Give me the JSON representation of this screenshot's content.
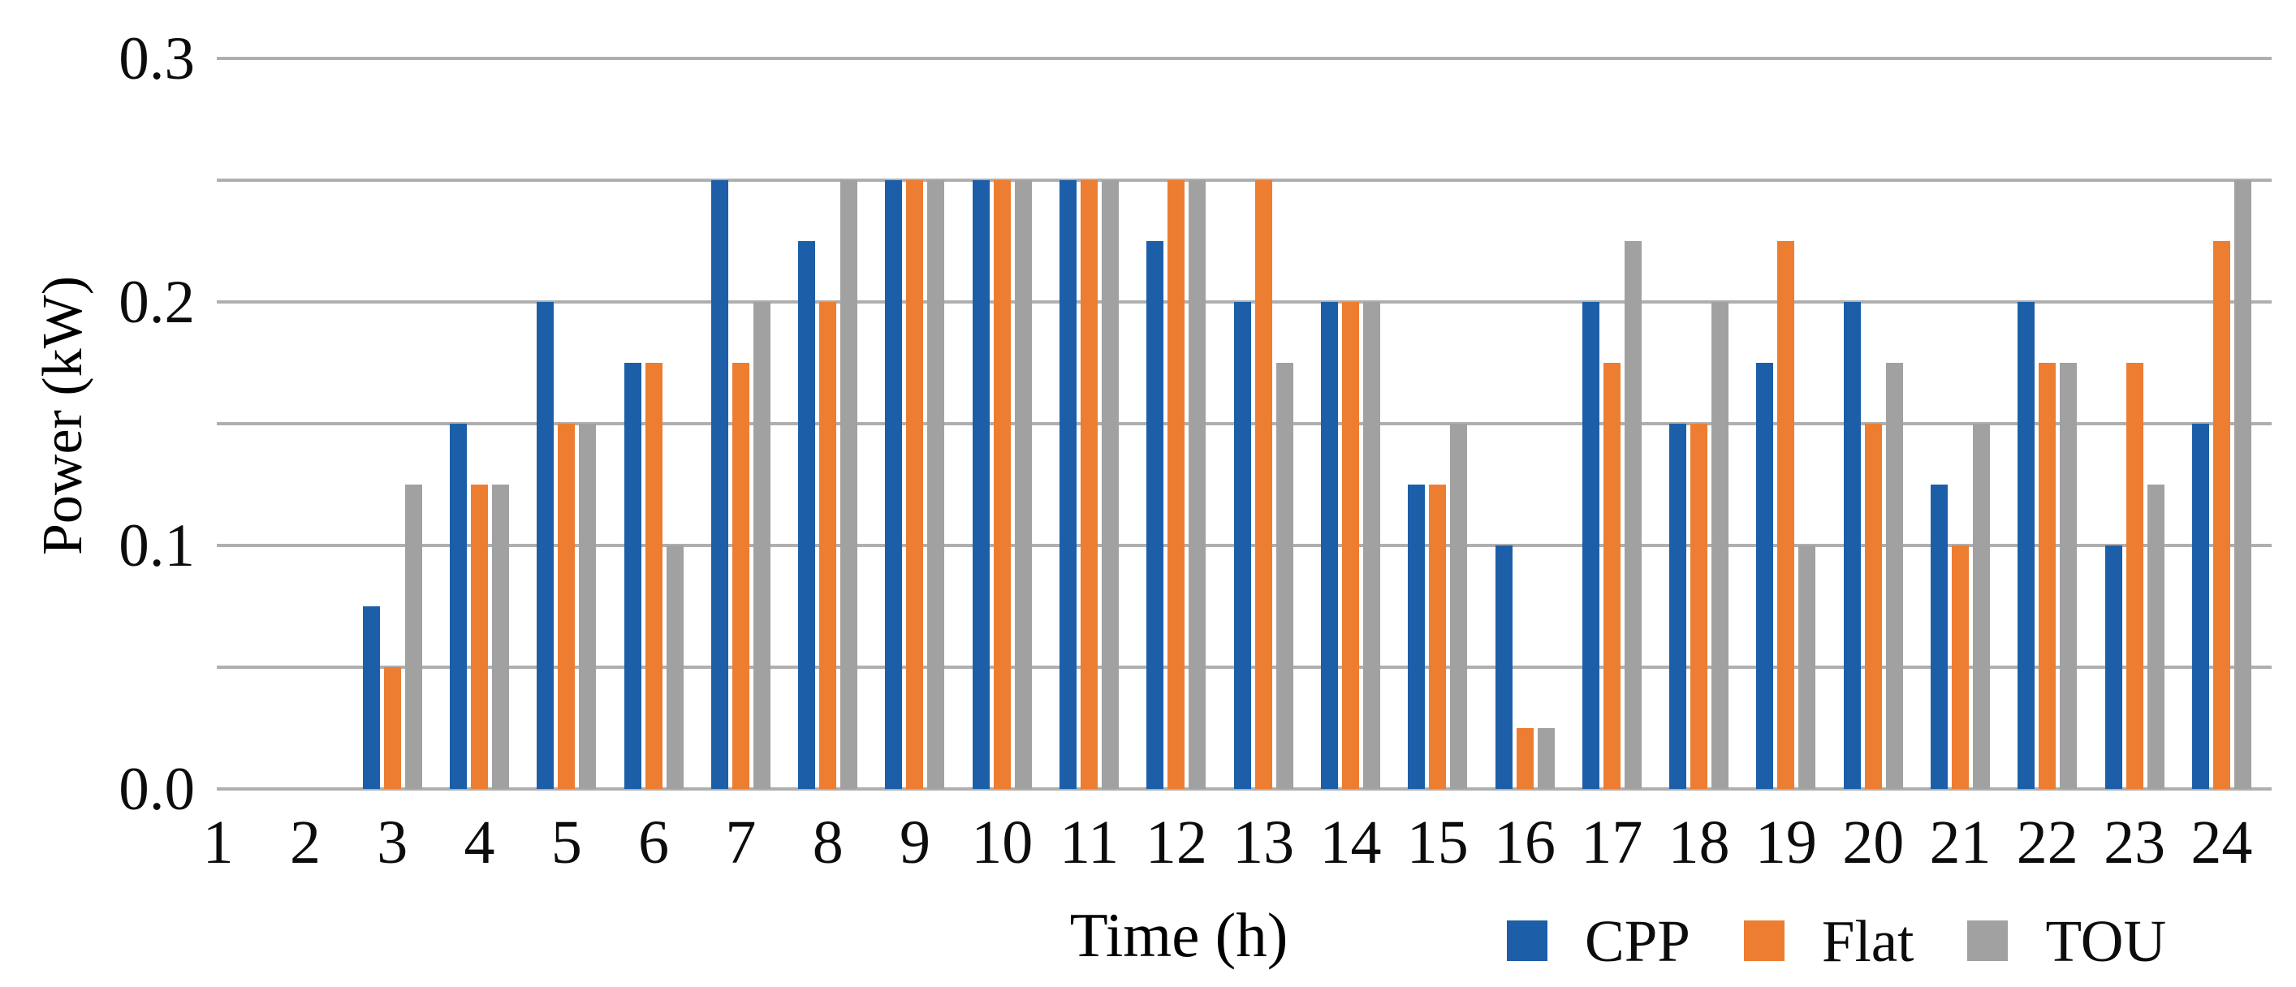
{
  "figure": {
    "background": "#ffffff"
  },
  "chart_data": {
    "type": "bar",
    "title": "",
    "xlabel": "Time (h)",
    "ylabel": "Power (kW)",
    "categories": [
      "1",
      "2",
      "3",
      "4",
      "5",
      "6",
      "7",
      "8",
      "9",
      "10",
      "11",
      "12",
      "13",
      "14",
      "15",
      "16",
      "17",
      "18",
      "19",
      "20",
      "21",
      "22",
      "23",
      "24"
    ],
    "series": [
      {
        "name": "CPP",
        "color": "#1C5FA8",
        "values": [
          0,
          0,
          0.075,
          0.15,
          0.2,
          0.175,
          0.25,
          0.225,
          0.25,
          0.25,
          0.25,
          0.225,
          0.2,
          0.2,
          0.125,
          0.1,
          0.2,
          0.15,
          0.175,
          0.2,
          0.125,
          0.2,
          0.1,
          0.15
        ]
      },
      {
        "name": "Flat",
        "color": "#ED7D31",
        "values": [
          0,
          0,
          0.05,
          0.125,
          0.15,
          0.175,
          0.175,
          0.2,
          0.25,
          0.25,
          0.25,
          0.25,
          0.25,
          0.2,
          0.125,
          0.025,
          0.175,
          0.15,
          0.225,
          0.15,
          0.1,
          0.175,
          0.175,
          0.225
        ]
      },
      {
        "name": "TOU",
        "color": "#A1A1A1",
        "values": [
          0,
          0,
          0.125,
          0.125,
          0.15,
          0.1,
          0.2,
          0.25,
          0.25,
          0.25,
          0.25,
          0.25,
          0.175,
          0.2,
          0.15,
          0.025,
          0.225,
          0.2,
          0.1,
          0.175,
          0.15,
          0.175,
          0.125,
          0.25
        ]
      }
    ],
    "ylim": [
      0,
      0.3
    ],
    "ytick_labels": [
      {
        "value": 0,
        "label": "0.0"
      },
      {
        "value": 0.1,
        "label": "0.1"
      },
      {
        "value": 0.2,
        "label": "0.2"
      },
      {
        "value": 0.3,
        "label": "0.3"
      }
    ],
    "gridline_interval": 0.05,
    "grid": true,
    "legend_position": "bottom-right",
    "gridline_color": "#AFAFAF",
    "text_color": "#0c0c0c"
  }
}
